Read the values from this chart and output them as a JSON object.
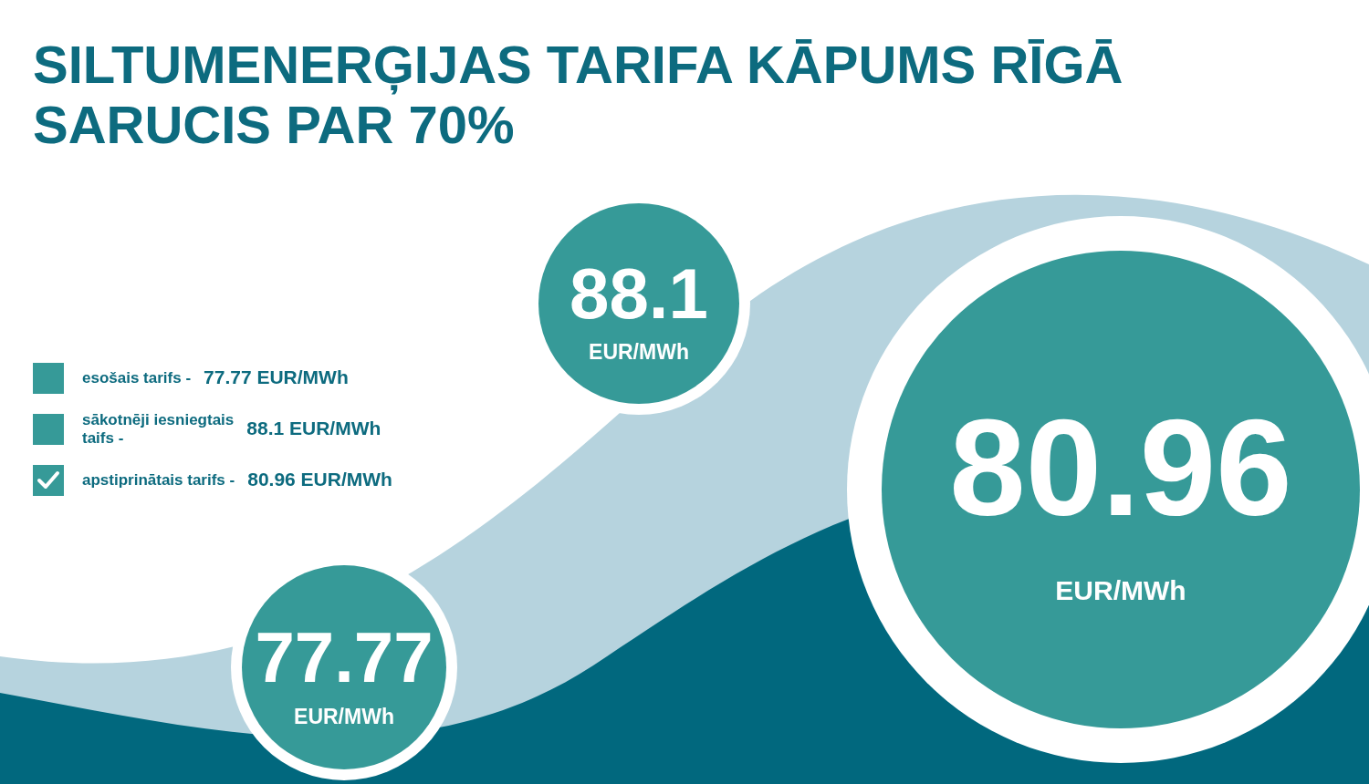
{
  "chart_data": {
    "type": "other",
    "title": "SILTUMENERĢIJAS TARIFA KĀPUMS RĪGĀ SARUCIS PAR 70%",
    "categories": [
      "esošais tarifs -",
      "sākotnēji iesniegtais taifs -",
      "apstiprinātais tarifs -"
    ],
    "values": [
      77.77,
      88.1,
      80.96
    ],
    "colors": [
      "#369a98",
      "#369a98",
      "#369a98"
    ],
    "ylabel": "EUR/MWh",
    "annotations": [
      "77.77",
      "88.1",
      "80.96"
    ],
    "data_labels": true
  }
}
